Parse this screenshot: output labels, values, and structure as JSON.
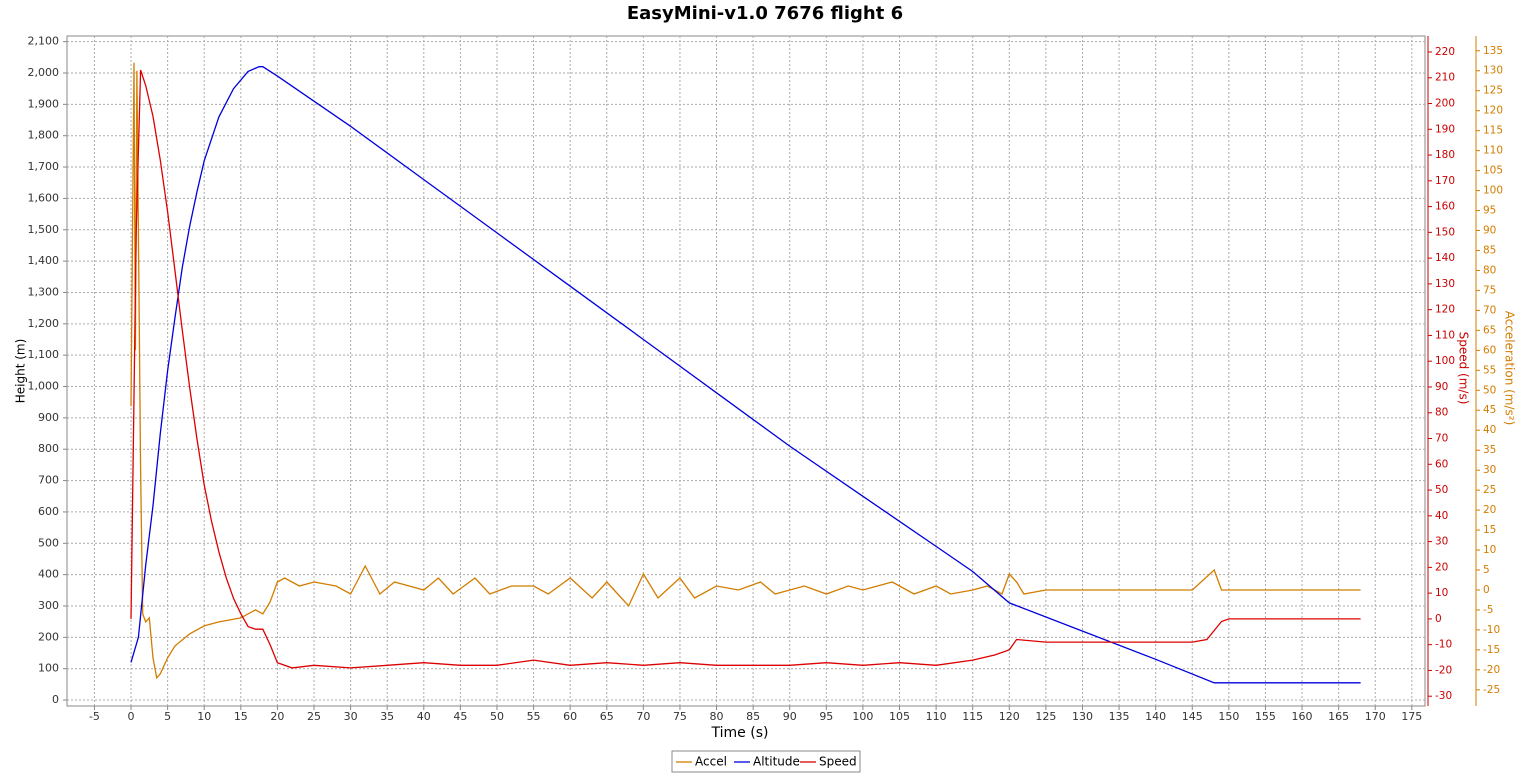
{
  "chart_data": {
    "type": "line",
    "title": "EasyMini-v1.0 7676 flight 6",
    "x_label": "Time (s)",
    "y_label": "Height (m)",
    "y2_label": "Speed (m/s)",
    "y3_label": "Acceleration (m/s²)",
    "grid": true,
    "legend": "bottom",
    "xlim": [
      -8.75,
      176.8
    ],
    "ylim": [
      -19,
      2118
    ],
    "y2lim": [
      -33.8,
      226.2
    ],
    "y3lim": [
      -29.05,
      138.7
    ],
    "xticks": [
      -5,
      0,
      5,
      10,
      15,
      20,
      25,
      30,
      35,
      40,
      45,
      50,
      55,
      60,
      65,
      70,
      75,
      80,
      85,
      90,
      95,
      100,
      105,
      110,
      115,
      120,
      125,
      130,
      135,
      140,
      145,
      150,
      155,
      160,
      165,
      170,
      175
    ],
    "yticks": [
      0,
      100,
      200,
      300,
      400,
      500,
      600,
      700,
      800,
      900,
      {
        "value": 1000,
        "label": "1,000"
      },
      {
        "value": 1100,
        "label": "1,100"
      },
      {
        "value": 1200,
        "label": "1,200"
      },
      {
        "value": 1300,
        "label": "1,300"
      },
      {
        "value": 1400,
        "label": "1,400"
      },
      {
        "value": 1500,
        "label": "1,500"
      },
      {
        "value": 1600,
        "label": "1,600"
      },
      {
        "value": 1700,
        "label": "1,700"
      },
      {
        "value": 1800,
        "label": "1,800"
      },
      {
        "value": 1900,
        "label": "1,900"
      },
      {
        "value": 2000,
        "label": "2,000"
      },
      {
        "value": 2100,
        "label": "2,100"
      }
    ],
    "y2ticks": [
      -30,
      -20,
      -10,
      0,
      10,
      20,
      30,
      40,
      50,
      60,
      70,
      80,
      90,
      100,
      110,
      120,
      130,
      140,
      150,
      160,
      170,
      180,
      190,
      200,
      210,
      220
    ],
    "y3ticks": [
      -25,
      -20,
      -15,
      -10,
      -5,
      0,
      5,
      10,
      15,
      20,
      25,
      30,
      35,
      40,
      45,
      50,
      55,
      60,
      65,
      70,
      75,
      80,
      85,
      90,
      95,
      100,
      105,
      110,
      115,
      120,
      125,
      130,
      135
    ],
    "series": [
      {
        "name": "Accel",
        "color": "#d27d00",
        "axis": "y3",
        "x": [
          0,
          0.4,
          0.6,
          0.8,
          1,
          1.3,
          1.6,
          2,
          2.5,
          3,
          3.5,
          4,
          5,
          6,
          8,
          10,
          12,
          15,
          17,
          18,
          19,
          20,
          21,
          23,
          25,
          28,
          30,
          32,
          34,
          36,
          40,
          42,
          44,
          47,
          49,
          52,
          55,
          57,
          60,
          63,
          65,
          67,
          68,
          70,
          72,
          75,
          77,
          80,
          83,
          86,
          88,
          92,
          95,
          98,
          100,
          104,
          107,
          110,
          112,
          115,
          117,
          119,
          120,
          121,
          122,
          125,
          130,
          135,
          140,
          145,
          148,
          149,
          150,
          168
        ],
        "values": [
          46,
          132,
          60,
          130,
          90,
          30,
          -6,
          -8,
          -7,
          -17,
          -22,
          -21,
          -17,
          -14,
          -11,
          -9,
          -8,
          -7,
          -5,
          -6,
          -3,
          2,
          3,
          1,
          2,
          1,
          -1,
          6,
          -1,
          2,
          0,
          3,
          -1,
          3,
          -1,
          1,
          1,
          -1,
          3,
          -2,
          2,
          -2,
          -4,
          4,
          -2,
          3,
          -2,
          1,
          0,
          2,
          -1,
          1,
          -1,
          1,
          0,
          2,
          -1,
          1,
          -1,
          0,
          1,
          -1,
          4,
          2,
          -1,
          0,
          0,
          0,
          0,
          0,
          5,
          0,
          0,
          0
        ]
      },
      {
        "name": "Altitude",
        "color": "#0000dd",
        "axis": "y",
        "x": [
          0,
          1,
          2,
          3,
          4,
          5,
          6,
          7,
          8,
          9,
          10,
          12,
          14,
          16,
          17.5,
          18,
          20,
          25,
          30,
          40,
          50,
          60,
          70,
          80,
          90,
          100,
          110,
          115,
          120,
          130,
          140,
          148,
          150,
          168
        ],
        "values": [
          120,
          200,
          430,
          620,
          850,
          1050,
          1220,
          1380,
          1510,
          1620,
          1720,
          1860,
          1950,
          2005,
          2020,
          2020,
          1990,
          1910,
          1830,
          1660,
          1490,
          1320,
          1150,
          980,
          810,
          650,
          490,
          410,
          310,
          220,
          130,
          55,
          55,
          55
        ]
      },
      {
        "name": "Speed",
        "color": "#dd0000",
        "axis": "y2",
        "x": [
          0,
          0.7,
          1.3,
          2,
          3,
          4,
          5,
          6,
          7,
          8,
          9,
          10,
          11,
          12,
          13,
          14,
          15,
          16,
          17,
          18,
          19,
          20,
          22,
          25,
          30,
          35,
          40,
          45,
          50,
          55,
          60,
          65,
          70,
          75,
          80,
          85,
          90,
          95,
          100,
          105,
          110,
          115,
          118,
          120,
          121,
          125,
          130,
          135,
          140,
          145,
          147,
          149,
          150,
          168
        ],
        "values": [
          0,
          150,
          213,
          207,
          195,
          178,
          158,
          135,
          112,
          90,
          70,
          52,
          38,
          26,
          16,
          8,
          2,
          -3,
          -4,
          -4,
          -10,
          -17,
          -19,
          -18,
          -19,
          -18,
          -17,
          -18,
          -18,
          -16,
          -18,
          -17,
          -18,
          -17,
          -18,
          -18,
          -18,
          -17,
          -18,
          -17,
          -18,
          -16,
          -14,
          -12,
          -8,
          -9,
          -9,
          -9,
          -9,
          -9,
          -8,
          -1,
          0,
          0
        ]
      }
    ]
  }
}
